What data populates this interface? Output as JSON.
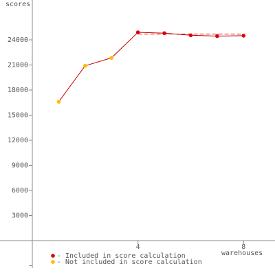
{
  "chart_data": {
    "type": "line",
    "y_label": "scores",
    "x_label": "warehouses",
    "xlim": [
      0,
      9.19
    ],
    "xticks": [
      4,
      8
    ],
    "ylim": [
      -3288,
      28767
    ],
    "yticks": [
      3000,
      6000,
      9000,
      12000,
      15000,
      18000,
      21000,
      24000
    ],
    "unlabeled_yticks": [
      -3000
    ],
    "x": [
      1,
      2,
      3,
      4,
      5,
      6,
      7,
      8
    ],
    "values": [
      16600,
      20900,
      21850,
      24900,
      24800,
      24550,
      24450,
      24500
    ],
    "line_color": "#cc0000",
    "point_groups": [
      0,
      0,
      0,
      1,
      1,
      1,
      1,
      1
    ],
    "series": [
      {
        "name": "- Not included in score calculation",
        "color": "#ffbb00"
      },
      {
        "name": "- Included in score calculation",
        "color": "#dd0000"
      }
    ],
    "reference_line": {
      "x": [
        4,
        8
      ],
      "values": [
        24700,
        24700
      ]
    }
  }
}
